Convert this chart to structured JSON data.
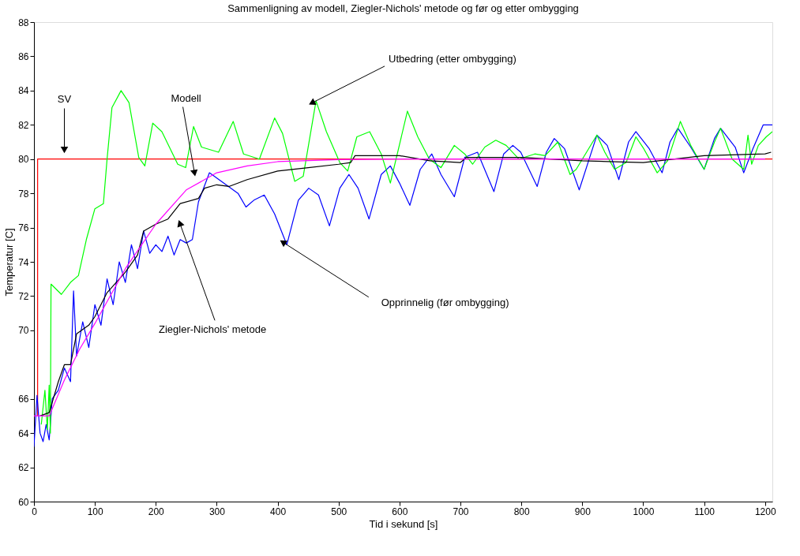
{
  "chart_data": {
    "type": "line",
    "title": "Sammenligning av modell, Ziegler-Nichols' metode og før og etter ombygging",
    "xlabel": "Tid i sekund [s]",
    "ylabel": "Temperatur [C]",
    "xlim": [
      0,
      1212
    ],
    "ylim": [
      60,
      88
    ],
    "xticks": [
      0,
      100,
      200,
      300,
      400,
      500,
      600,
      700,
      800,
      900,
      1000,
      1100,
      1200
    ],
    "yticks": [
      60,
      62,
      64,
      66,
      70,
      72,
      74,
      76,
      78,
      80,
      82,
      84,
      86,
      88
    ],
    "grid": false,
    "marker": "none",
    "line_style": "solid",
    "series": [
      {
        "color": "#ff0000",
        "x": [
          6,
          6,
          1212
        ],
        "values": [
          65,
          80,
          80
        ]
      },
      {
        "color": "#0000ff",
        "x": [
          0,
          5,
          10,
          15,
          20,
          25,
          30,
          40,
          50,
          60,
          65,
          70,
          80,
          90,
          100,
          110,
          120,
          130,
          140,
          150,
          160,
          170,
          180,
          190,
          200,
          210,
          220,
          230,
          240,
          250,
          260,
          270,
          288,
          335,
          348,
          361,
          378,
          395,
          415,
          434,
          451,
          467,
          485,
          502,
          517,
          532,
          550,
          570,
          585,
          600,
          617,
          634,
          653,
          668,
          690,
          707,
          728,
          755,
          771,
          786,
          799,
          826,
          841,
          854,
          871,
          895,
          924,
          941,
          960,
          976,
          988,
          1010,
          1031,
          1044,
          1057,
          1078,
          1100,
          1117,
          1127,
          1151,
          1165,
          1180,
          1197,
          1212
        ],
        "values": [
          63.2,
          66.2,
          64.0,
          63.5,
          64.5,
          63.6,
          66.0,
          66.5,
          67.8,
          67.0,
          72.3,
          68.5,
          70.5,
          69.0,
          71.5,
          70.3,
          73.0,
          71.5,
          74.0,
          72.8,
          75.0,
          73.6,
          75.8,
          74.5,
          75.0,
          74.6,
          75.5,
          74.4,
          75.3,
          75.1,
          75.3,
          77.5,
          79.2,
          78.0,
          77.2,
          77.6,
          77.9,
          76.8,
          75.0,
          77.6,
          78.3,
          77.9,
          76.1,
          78.3,
          79.1,
          78.3,
          76.5,
          79.1,
          79.6,
          78.6,
          77.3,
          79.4,
          80.3,
          79.1,
          77.8,
          80.1,
          80.4,
          78.1,
          80.3,
          80.8,
          80.4,
          78.4,
          80.4,
          81.2,
          80.6,
          78.2,
          81.4,
          80.8,
          78.8,
          81.0,
          81.6,
          80.6,
          79.2,
          81.0,
          81.8,
          80.7,
          79.4,
          81.2,
          81.8,
          80.7,
          79.2,
          80.6,
          82.0,
          82.0
        ]
      },
      {
        "color": "#00ff00",
        "x": [
          12,
          18,
          22,
          25,
          27,
          28,
          45,
          60,
          73,
          86,
          100,
          114,
          120,
          128,
          143,
          156,
          172,
          182,
          195,
          210,
          236,
          249,
          262,
          275,
          303,
          327,
          344,
          370,
          395,
          408,
          428,
          442,
          463,
          480,
          502,
          515,
          530,
          551,
          570,
          585,
          613,
          630,
          649,
          668,
          690,
          707,
          720,
          740,
          758,
          775,
          796,
          822,
          839,
          860,
          880,
          890,
          924,
          937,
          953,
          972,
          988,
          1001,
          1023,
          1040,
          1061,
          1078,
          1100,
          1117,
          1127,
          1146,
          1165,
          1172,
          1178,
          1189,
          1202,
          1212
        ],
        "values": [
          64.5,
          66.5,
          64.2,
          66.8,
          64.0,
          72.7,
          72.1,
          72.8,
          73.2,
          75.3,
          77.1,
          77.4,
          80.0,
          83.0,
          84.0,
          83.3,
          80.1,
          79.6,
          82.1,
          81.6,
          79.7,
          79.5,
          81.9,
          80.7,
          80.4,
          82.2,
          80.3,
          80.0,
          82.4,
          81.5,
          78.7,
          79.0,
          83.4,
          81.6,
          79.8,
          79.3,
          81.3,
          81.6,
          80.3,
          78.6,
          82.8,
          81.3,
          80.0,
          79.5,
          80.8,
          80.3,
          79.7,
          80.7,
          81.1,
          80.8,
          80.0,
          80.3,
          80.2,
          81.0,
          79.1,
          79.4,
          81.4,
          80.4,
          79.4,
          79.8,
          81.3,
          80.6,
          79.2,
          79.9,
          82.2,
          80.8,
          79.4,
          81.0,
          81.8,
          80.0,
          79.4,
          81.4,
          79.7,
          80.8,
          81.3,
          81.6
        ]
      },
      {
        "color": "#000000",
        "x": [
          10,
          25,
          40,
          50,
          60,
          70,
          90,
          100,
          120,
          150,
          170,
          180,
          200,
          220,
          240,
          270,
          280,
          300,
          320,
          350,
          400,
          450,
          500,
          520,
          527,
          600,
          650,
          700,
          710,
          800,
          900,
          1000,
          1100,
          1200,
          1210
        ],
        "values": [
          65.0,
          65.2,
          67.0,
          68.0,
          68.0,
          69.8,
          70.3,
          70.8,
          72.2,
          73.4,
          74.4,
          75.8,
          76.2,
          76.5,
          77.4,
          77.7,
          78.3,
          78.5,
          78.4,
          78.8,
          79.3,
          79.5,
          79.7,
          79.8,
          80.2,
          80.2,
          79.9,
          79.8,
          80.1,
          80.1,
          79.9,
          79.8,
          80.2,
          80.3,
          80.4
        ]
      },
      {
        "color": "#ff00ff",
        "x": [
          0,
          25,
          50,
          75,
          100,
          150,
          200,
          250,
          300,
          350,
          400,
          500,
          600,
          1200
        ],
        "values": [
          65.0,
          65.0,
          67.1,
          68.9,
          70.4,
          73.6,
          76.2,
          78.2,
          79.2,
          79.6,
          79.85,
          79.97,
          80.0,
          80.0
        ]
      }
    ],
    "annotations": [
      "SV",
      "Modell",
      {
        "text": "Utbedring (etter ombygging)",
        "x": 463,
        "y": 83.4
      },
      {
        "text": "Opprinnelig (før ombygging)",
        "x": 415,
        "y": 75.0
      },
      "Ziegler-Nichols' metode"
    ]
  }
}
